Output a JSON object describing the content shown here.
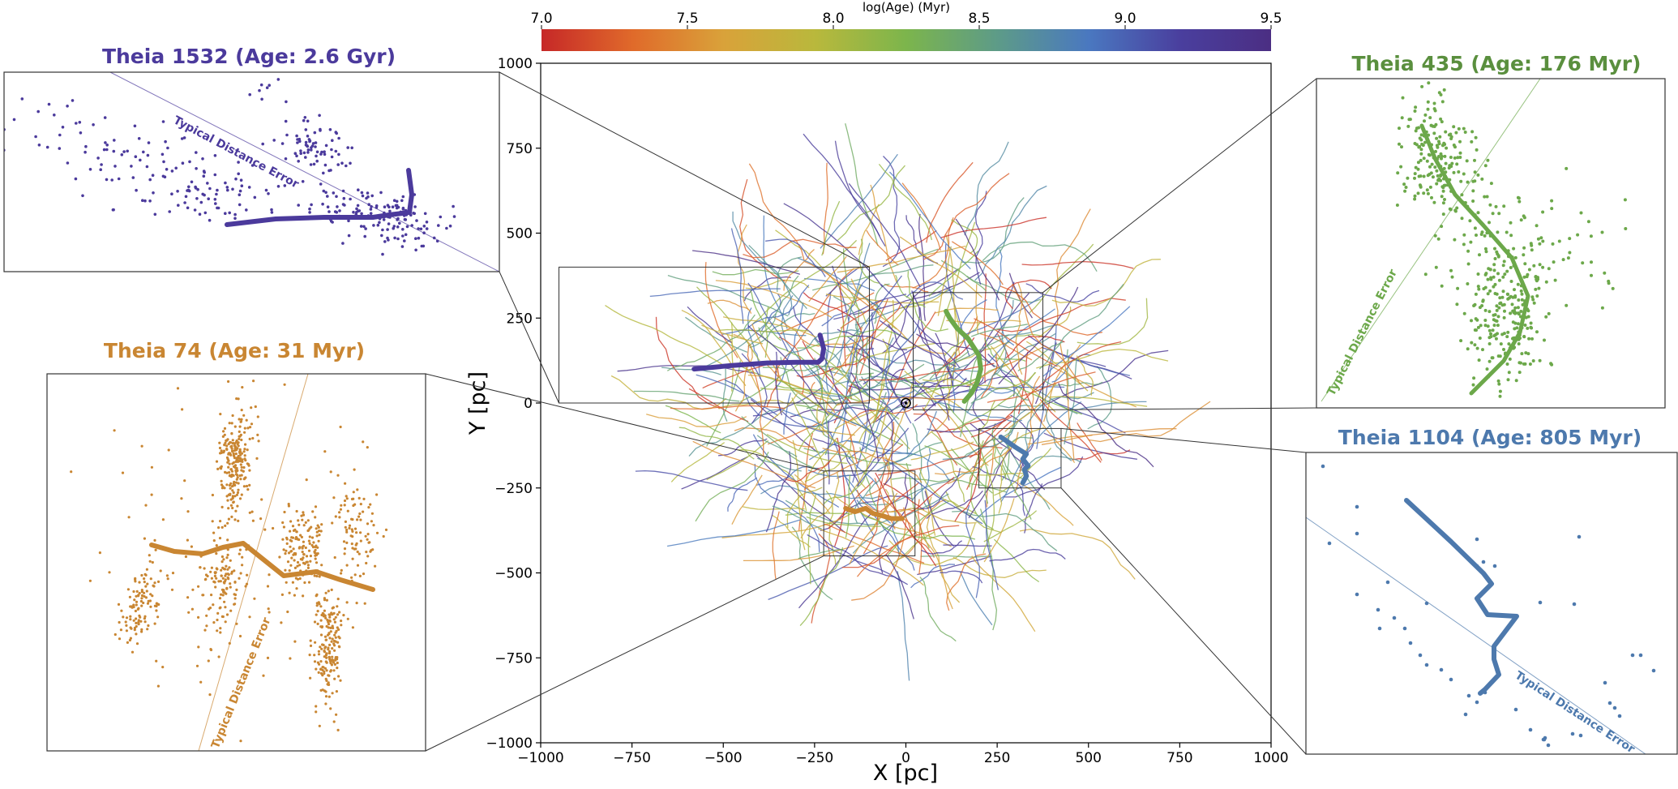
{
  "chart_data": {
    "type": "line",
    "title": "",
    "xlabel": "X [pc]",
    "ylabel": "Y [pc]",
    "xlim": [
      -1000,
      1000
    ],
    "ylim": [
      -1000,
      1000
    ],
    "xticks": [
      "−1000",
      "−750",
      "−500",
      "−250",
      "0",
      "250",
      "500",
      "750",
      "1000"
    ],
    "yticks": [
      "1000",
      "750",
      "500",
      "250",
      "0",
      "−250",
      "−500",
      "−750",
      "−1000"
    ],
    "grid": false,
    "sun_marker": {
      "x": 0,
      "y": 0,
      "symbol": "⊙"
    },
    "colorbar": {
      "label": "log(Age) (Myr)",
      "range": [
        7.0,
        9.5
      ],
      "ticks": [
        "7.0",
        "7.5",
        "8.0",
        "8.5",
        "9.0",
        "9.5"
      ],
      "colormap": [
        "#c62828",
        "#e06a2a",
        "#d9a23a",
        "#b9b83c",
        "#7cb54c",
        "#5d9b88",
        "#4a78c0",
        "#4a3f9e",
        "#4b2e83"
      ]
    },
    "background_strands": {
      "count": 520,
      "note": "ensemble of age-colored strings spanning roughly the central 1000 pc"
    },
    "highlighted": [
      {
        "name": "Theia 1532",
        "age_label": "Theia 1532 (Age: 2.6 Gyr)",
        "color": "#4b3a9c",
        "x": [
          -580,
          -480,
          -380,
          -300,
          -240,
          -230,
          -225,
          -235
        ],
        "y": [
          100,
          110,
          118,
          120,
          120,
          130,
          160,
          200
        ],
        "box": {
          "x": [
            -950,
            -100
          ],
          "y": [
            0,
            400
          ]
        }
      },
      {
        "name": "Theia 435",
        "age_label": "Theia 435 (Age: 176 Myr)",
        "color": "#6ca84a",
        "x": [
          110,
          120,
          140,
          170,
          200,
          205,
          195,
          180,
          160
        ],
        "y": [
          270,
          250,
          220,
          190,
          140,
          100,
          60,
          30,
          5
        ],
        "box": {
          "x": [
            20,
            375
          ],
          "y": [
            -20,
            325
          ]
        }
      },
      {
        "name": "Theia 74",
        "age_label": "Theia 74 (Age: 31 Myr)",
        "color": "#c98632",
        "x": [
          -165,
          -140,
          -110,
          -90,
          -70,
          -40,
          -10
        ],
        "y": [
          -310,
          -320,
          -310,
          -325,
          -330,
          -340,
          -340
        ],
        "box": {
          "x": [
            -225,
            25
          ],
          "y": [
            -450,
            -200
          ]
        }
      },
      {
        "name": "Theia 1104",
        "age_label": "Theia 1104 (Age: 805 Myr)",
        "color": "#4d79ad",
        "x": [
          260,
          300,
          330,
          320,
          335,
          325,
          330,
          320
        ],
        "y": [
          -100,
          -130,
          -150,
          -165,
          -185,
          -195,
          -215,
          -235
        ],
        "box": {
          "x": [
            200,
            425
          ],
          "y": [
            -250,
            -75
          ]
        }
      }
    ],
    "inset_annotation": "Typical Distance Error"
  }
}
